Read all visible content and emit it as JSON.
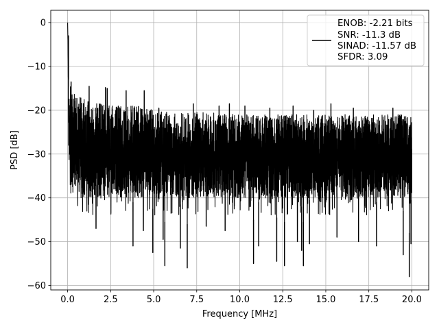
{
  "chart_data": {
    "type": "line",
    "xlabel": "Frequency [MHz]",
    "ylabel": "PSD [dB]",
    "xlim": [
      -0.98,
      20.98
    ],
    "ylim": [
      -61.0,
      2.8
    ],
    "xticks": [
      0.0,
      2.5,
      5.0,
      7.5,
      10.0,
      12.5,
      15.0,
      17.5,
      20.0
    ],
    "xtick_labels": [
      "0.0",
      "2.5",
      "5.0",
      "7.5",
      "10.0",
      "12.5",
      "15.0",
      "17.5",
      "20.0"
    ],
    "yticks": [
      0,
      -10,
      -20,
      -30,
      -40,
      -50,
      -60
    ],
    "ytick_labels": [
      "0",
      "−10",
      "−20",
      "−30",
      "−40",
      "−50",
      "−60"
    ],
    "grid": true,
    "legend_position": "top-right",
    "line_color": "#000000",
    "series": [
      {
        "legend_lines": [
          "ENOB: -2.21 bits",
          "SNR: -11.3 dB",
          "SINAD: -11.57 dB",
          "SFDR: 3.09"
        ],
        "x": [
          0.0,
          0.02,
          0.05,
          0.1,
          0.2,
          0.35,
          0.5,
          0.75,
          1.0,
          1.5,
          2.0,
          2.5,
          3.0,
          4.0,
          5.0,
          6.0,
          7.0,
          8.0,
          10.0,
          12.0,
          14.0,
          16.0,
          18.0,
          20.0
        ],
        "upper_envelope": [
          0.0,
          -4.0,
          -10.0,
          -14.0,
          -15.0,
          -16.0,
          -17.0,
          -16.5,
          -17.5,
          -18.0,
          -18.5,
          -19.0,
          -19.0,
          -19.0,
          -20.0,
          -20.5,
          -20.5,
          -20.5,
          -21.0,
          -21.0,
          -21.0,
          -21.0,
          -21.0,
          -21.0
        ],
        "lower_envelope": [
          0.0,
          -5.0,
          -28.5,
          -35.0,
          -37.0,
          -38.0,
          -39.0,
          -39.5,
          -40.0,
          -40.0,
          -40.0,
          -40.0,
          -40.0,
          -40.0,
          -40.0,
          -40.0,
          -40.0,
          -40.0,
          -40.0,
          -40.0,
          -40.0,
          -40.0,
          -40.0,
          -40.0
        ],
        "deep_notches": [
          {
            "x": 1.65,
            "y": -47.0
          },
          {
            "x": 3.8,
            "y": -51.0
          },
          {
            "x": 4.4,
            "y": -47.5
          },
          {
            "x": 4.95,
            "y": -52.5
          },
          {
            "x": 5.55,
            "y": -49.5
          },
          {
            "x": 5.65,
            "y": -55.5
          },
          {
            "x": 6.55,
            "y": -51.5
          },
          {
            "x": 6.95,
            "y": -56.0
          },
          {
            "x": 8.05,
            "y": -46.5
          },
          {
            "x": 9.15,
            "y": -47.5
          },
          {
            "x": 10.8,
            "y": -55.0
          },
          {
            "x": 11.1,
            "y": -51.0
          },
          {
            "x": 12.15,
            "y": -54.5
          },
          {
            "x": 12.6,
            "y": -55.5
          },
          {
            "x": 13.35,
            "y": -50.0
          },
          {
            "x": 13.6,
            "y": -52.0
          },
          {
            "x": 13.7,
            "y": -55.5
          },
          {
            "x": 14.05,
            "y": -50.5
          },
          {
            "x": 15.65,
            "y": -49.0
          },
          {
            "x": 16.9,
            "y": -50.0
          },
          {
            "x": 17.95,
            "y": -51.0
          },
          {
            "x": 19.5,
            "y": -53.0
          },
          {
            "x": 19.85,
            "y": -58.0
          },
          {
            "x": 19.95,
            "y": -50.5
          }
        ],
        "tall_peaks": [
          {
            "x": 0.05,
            "y": -3.0
          },
          {
            "x": 0.2,
            "y": -13.5
          },
          {
            "x": 1.25,
            "y": -14.5
          },
          {
            "x": 2.2,
            "y": -14.8
          },
          {
            "x": 2.3,
            "y": -15.0
          },
          {
            "x": 3.4,
            "y": -15.5
          },
          {
            "x": 4.45,
            "y": -15.5
          },
          {
            "x": 5.3,
            "y": -19.5
          },
          {
            "x": 7.3,
            "y": -18.5
          },
          {
            "x": 8.8,
            "y": -19.0
          },
          {
            "x": 9.4,
            "y": -18.5
          },
          {
            "x": 10.3,
            "y": -19.0
          },
          {
            "x": 11.75,
            "y": -19.5
          },
          {
            "x": 13.1,
            "y": -19.0
          },
          {
            "x": 14.3,
            "y": -20.0
          },
          {
            "x": 15.3,
            "y": -18.5
          },
          {
            "x": 16.6,
            "y": -19.5
          },
          {
            "x": 18.9,
            "y": -19.5
          }
        ]
      }
    ]
  }
}
